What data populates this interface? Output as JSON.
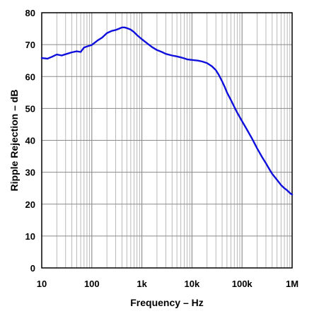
{
  "chart_data": {
    "type": "line",
    "title": "",
    "xlabel": "Frequency – Hz",
    "ylabel": "Ripple Rejection – dB",
    "x_scale": "log",
    "xlim": [
      10,
      1000000
    ],
    "ylim": [
      0,
      80
    ],
    "grid": true,
    "x_tick_labels": [
      {
        "value": 10,
        "label": "10"
      },
      {
        "value": 100,
        "label": "100"
      },
      {
        "value": 1000,
        "label": "1k"
      },
      {
        "value": 10000,
        "label": "10k"
      },
      {
        "value": 100000,
        "label": "100k"
      },
      {
        "value": 1000000,
        "label": "1M"
      }
    ],
    "y_tick_labels": [
      {
        "value": 0,
        "label": "0"
      },
      {
        "value": 10,
        "label": "10"
      },
      {
        "value": 20,
        "label": "20"
      },
      {
        "value": 30,
        "label": "30"
      },
      {
        "value": 40,
        "label": "40"
      },
      {
        "value": 50,
        "label": "50"
      },
      {
        "value": 60,
        "label": "60"
      },
      {
        "value": 70,
        "label": "70"
      },
      {
        "value": 80,
        "label": "80"
      }
    ],
    "series": [
      {
        "color": "#1010dd",
        "points": [
          [
            10,
            65.8
          ],
          [
            13,
            65.6
          ],
          [
            16,
            66.2
          ],
          [
            20,
            66.9
          ],
          [
            25,
            66.6
          ],
          [
            30,
            67.0
          ],
          [
            40,
            67.6
          ],
          [
            50,
            67.9
          ],
          [
            60,
            67.7
          ],
          [
            70,
            69.1
          ],
          [
            80,
            69.4
          ],
          [
            100,
            69.9
          ],
          [
            130,
            71.3
          ],
          [
            160,
            72.2
          ],
          [
            200,
            73.6
          ],
          [
            250,
            74.3
          ],
          [
            300,
            74.6
          ],
          [
            350,
            75.0
          ],
          [
            400,
            75.4
          ],
          [
            450,
            75.4
          ],
          [
            500,
            75.2
          ],
          [
            600,
            74.7
          ],
          [
            700,
            73.9
          ],
          [
            800,
            73.0
          ],
          [
            1000,
            71.7
          ],
          [
            1300,
            70.3
          ],
          [
            1600,
            69.2
          ],
          [
            2000,
            68.3
          ],
          [
            2500,
            67.7
          ],
          [
            3000,
            67.1
          ],
          [
            4000,
            66.6
          ],
          [
            5000,
            66.3
          ],
          [
            6000,
            66.0
          ],
          [
            7000,
            65.7
          ],
          [
            8000,
            65.4
          ],
          [
            10000,
            65.2
          ],
          [
            13000,
            65.0
          ],
          [
            16000,
            64.7
          ],
          [
            20000,
            64.2
          ],
          [
            25000,
            63.2
          ],
          [
            30000,
            62.0
          ],
          [
            35000,
            60.3
          ],
          [
            40000,
            58.5
          ],
          [
            45000,
            56.8
          ],
          [
            50000,
            55.0
          ],
          [
            60000,
            52.6
          ],
          [
            70000,
            50.5
          ],
          [
            80000,
            48.7
          ],
          [
            100000,
            46.0
          ],
          [
            130000,
            42.9
          ],
          [
            160000,
            40.4
          ],
          [
            200000,
            37.5
          ],
          [
            250000,
            34.8
          ],
          [
            300000,
            32.8
          ],
          [
            350000,
            31.0
          ],
          [
            400000,
            29.5
          ],
          [
            450000,
            28.5
          ],
          [
            500000,
            27.6
          ],
          [
            600000,
            26.0
          ],
          [
            700000,
            25.0
          ],
          [
            800000,
            24.3
          ],
          [
            900000,
            23.5
          ],
          [
            1000000,
            23.0
          ]
        ]
      }
    ]
  }
}
